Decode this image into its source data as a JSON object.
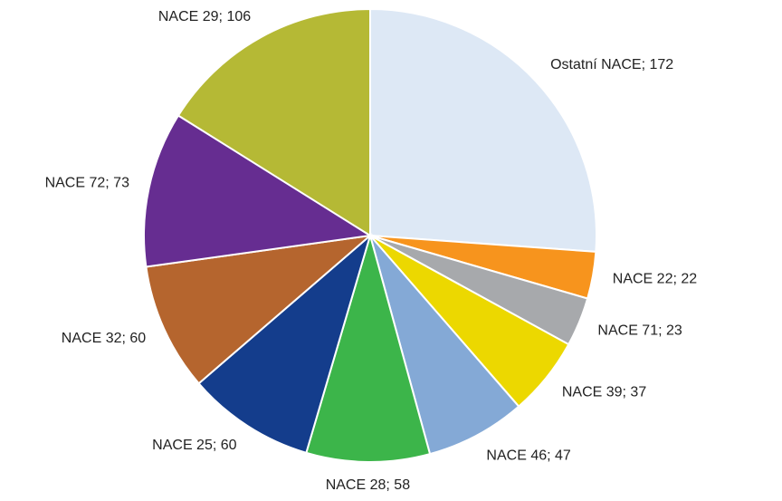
{
  "chart_data": {
    "type": "pie",
    "categories": [
      "Ostatní NACE; 172",
      "NACE 22; 22",
      "NACE 71; 23",
      "NACE 39; 37",
      "NACE 46; 47",
      "NACE 28; 58",
      "NACE 25; 60",
      "NACE 32; 60",
      "NACE 72; 73",
      "NACE 29; 106"
    ],
    "values": [
      172,
      22,
      23,
      37,
      47,
      58,
      60,
      60,
      73,
      106
    ],
    "colors": [
      "#dde8f5",
      "#f7941d",
      "#a7a9ac",
      "#ecd800",
      "#84a9d6",
      "#3cb54a",
      "#143d8c",
      "#b5652e",
      "#662d91",
      "#b5b935"
    ]
  }
}
